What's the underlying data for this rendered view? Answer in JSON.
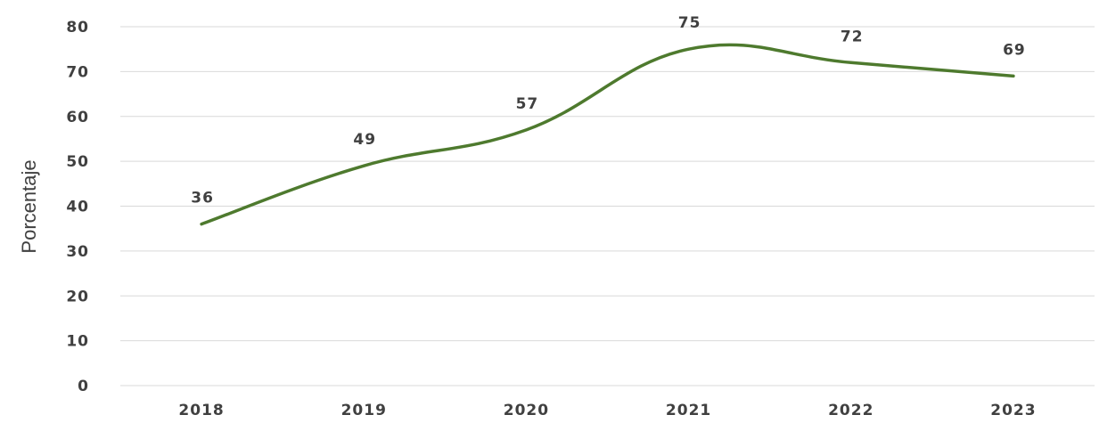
{
  "chart_data": {
    "type": "line",
    "title": "",
    "xlabel": "",
    "ylabel": "Porcentaje",
    "categories": [
      "2018",
      "2019",
      "2020",
      "2021",
      "2022",
      "2023"
    ],
    "series": [
      {
        "values": [
          36,
          49,
          57,
          75,
          72,
          69
        ],
        "color": "#4e7a2e"
      }
    ],
    "data_labels": [
      "36",
      "49",
      "57",
      "75",
      "72",
      "69"
    ],
    "y_ticks": [
      "0",
      "10",
      "20",
      "30",
      "40",
      "50",
      "60",
      "70",
      "80"
    ],
    "ylim": [
      0,
      80
    ],
    "grid": true,
    "smooth": true,
    "legend": "none"
  }
}
